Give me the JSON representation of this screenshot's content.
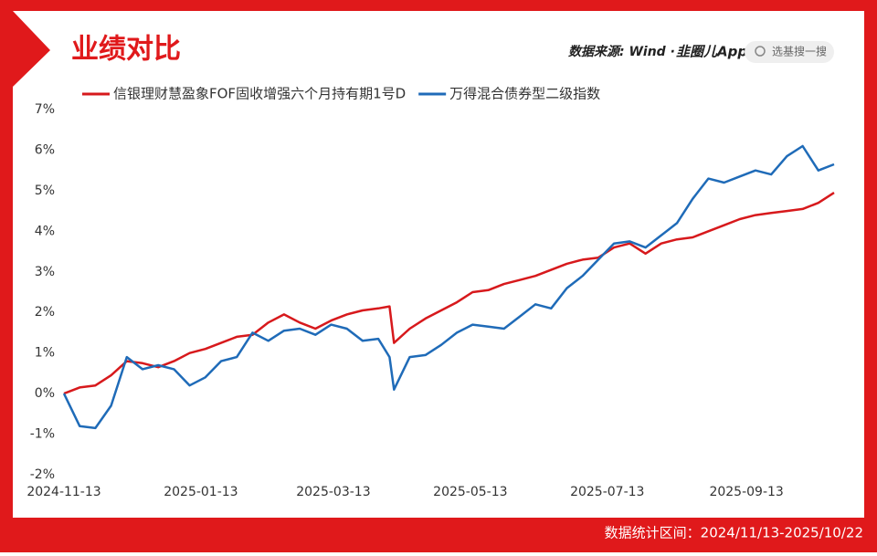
{
  "chart_data": {
    "type": "line",
    "title": "业绩对比",
    "source": "数据来源: Wind ·",
    "source_app": "韭圈儿App",
    "search_placeholder": "选基搜一搜",
    "footer": "数据统计区间：2024/11/13-2025/10/22",
    "x": [
      "2024-11-13",
      "2024-11-20",
      "2024-11-27",
      "2024-12-04",
      "2024-12-11",
      "2024-12-18",
      "2024-12-25",
      "2025-01-01",
      "2025-01-08",
      "2025-01-15",
      "2025-01-22",
      "2025-01-29",
      "2025-02-05",
      "2025-02-12",
      "2025-02-19",
      "2025-02-26",
      "2025-03-05",
      "2025-03-12",
      "2025-03-19",
      "2025-03-26",
      "2025-04-02",
      "2025-04-07",
      "2025-04-09",
      "2025-04-16",
      "2025-04-23",
      "2025-04-30",
      "2025-05-07",
      "2025-05-14",
      "2025-05-21",
      "2025-05-28",
      "2025-06-04",
      "2025-06-11",
      "2025-06-18",
      "2025-06-25",
      "2025-07-02",
      "2025-07-09",
      "2025-07-16",
      "2025-07-23",
      "2025-07-30",
      "2025-08-06",
      "2025-08-13",
      "2025-08-20",
      "2025-08-27",
      "2025-09-03",
      "2025-09-10",
      "2025-09-17",
      "2025-09-24",
      "2025-10-01",
      "2025-10-08",
      "2025-10-15",
      "2025-10-22"
    ],
    "series": [
      {
        "name": "信银理财慧盈象FOF固收增强六个月持有期1号D",
        "color": "#d7191c",
        "values": [
          0,
          0.15,
          0.2,
          0.45,
          0.8,
          0.75,
          0.65,
          0.8,
          1.0,
          1.1,
          1.25,
          1.4,
          1.45,
          1.75,
          1.95,
          1.75,
          1.6,
          1.8,
          1.95,
          2.05,
          2.1,
          2.15,
          1.25,
          1.6,
          1.85,
          2.05,
          2.25,
          2.5,
          2.55,
          2.7,
          2.8,
          2.9,
          3.05,
          3.2,
          3.3,
          3.35,
          3.6,
          3.7,
          3.45,
          3.7,
          3.8,
          3.85,
          4.0,
          4.15,
          4.3,
          4.4,
          4.45,
          4.5,
          4.55,
          4.7,
          4.95
        ]
      },
      {
        "name": "万得混合债券型二级指数",
        "color": "#1f6bb8",
        "values": [
          0,
          -0.8,
          -0.85,
          -0.3,
          0.9,
          0.6,
          0.7,
          0.6,
          0.2,
          0.4,
          0.8,
          0.9,
          1.5,
          1.3,
          1.55,
          1.6,
          1.45,
          1.7,
          1.6,
          1.3,
          1.35,
          0.9,
          0.1,
          0.9,
          0.95,
          1.2,
          1.5,
          1.7,
          1.65,
          1.6,
          1.9,
          2.2,
          2.1,
          2.6,
          2.9,
          3.3,
          3.7,
          3.75,
          3.6,
          3.9,
          4.2,
          4.8,
          5.3,
          5.2,
          5.35,
          5.5,
          5.4,
          5.85,
          6.1,
          5.5,
          5.65
        ]
      }
    ],
    "xlim": [
      "2024-11-13",
      "2025-10-22"
    ],
    "xticks": [
      "2024-11-13",
      "2025-01-13",
      "2025-03-13",
      "2025-05-13",
      "2025-07-13",
      "2025-09-13"
    ],
    "ylim": [
      -2,
      7
    ],
    "yticks": [
      {
        "value": -2,
        "label": "-2%"
      },
      {
        "value": -1,
        "label": "-1%"
      },
      {
        "value": 0,
        "label": "0%"
      },
      {
        "value": 1,
        "label": "1%"
      },
      {
        "value": 2,
        "label": "2%"
      },
      {
        "value": 3,
        "label": "3%"
      },
      {
        "value": 4,
        "label": "4%"
      },
      {
        "value": 5,
        "label": "5%"
      },
      {
        "value": 6,
        "label": "6%"
      },
      {
        "value": 7,
        "label": "7%"
      }
    ],
    "grid": false
  }
}
